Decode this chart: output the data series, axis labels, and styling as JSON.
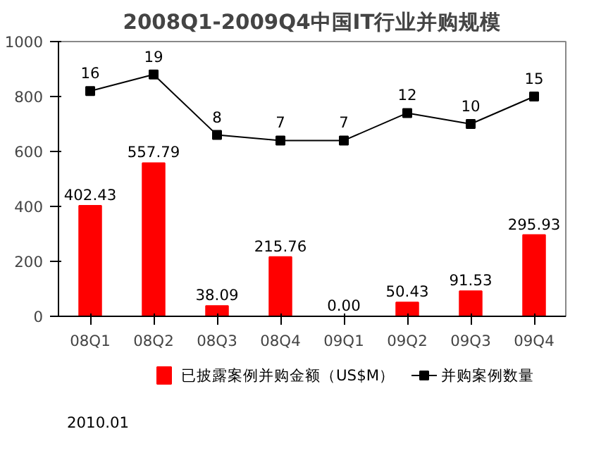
{
  "chart_data": {
    "type": "bar",
    "title": "2008Q1-2009Q4中国IT行业并购规模",
    "categories": [
      "08Q1",
      "08Q2",
      "08Q3",
      "08Q4",
      "09Q1",
      "09Q2",
      "09Q3",
      "09Q4"
    ],
    "series": [
      {
        "name": "已披露案例并购金额（US$M）",
        "color": "#ff0000",
        "values": [
          402.43,
          557.79,
          38.09,
          215.76,
          0.0,
          50.43,
          91.53,
          295.93
        ],
        "value_labels": [
          "402.43",
          "557.79",
          "38.09",
          "215.76",
          "0.00",
          "50.43",
          "91.53",
          "295.93"
        ]
      },
      {
        "name": "并购案例数量",
        "type": "line",
        "axis": "y2",
        "color": "#000000",
        "values": [
          16,
          19,
          8,
          7,
          7,
          12,
          10,
          15
        ],
        "data_labels": true
      }
    ],
    "ylim": [
      0,
      1000
    ],
    "yticks": [
      0,
      200,
      400,
      600,
      800,
      1000
    ],
    "y2lim": [
      -25,
      25
    ],
    "grid": false,
    "legend": "bottom",
    "marker": "square",
    "line_style": "solid",
    "annotations": [
      "2010.01"
    ]
  }
}
